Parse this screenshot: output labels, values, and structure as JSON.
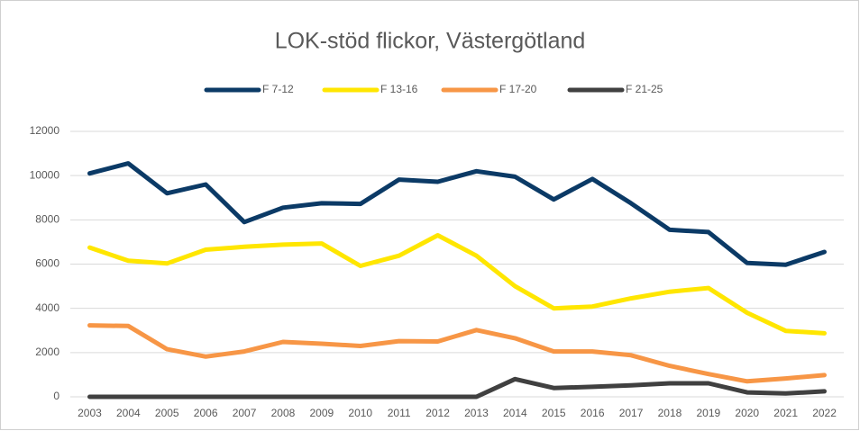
{
  "chart_data": {
    "type": "line",
    "title": "LOK-stöd flickor, Västergötland",
    "categories": [
      "2003",
      "2004",
      "2005",
      "2006",
      "2007",
      "2008",
      "2009",
      "2010",
      "2011",
      "2012",
      "2013",
      "2014",
      "2015",
      "2016",
      "2017",
      "2018",
      "2019",
      "2020",
      "2021",
      "2022"
    ],
    "series": [
      {
        "name": "F 7-12",
        "color": "#0b3a66",
        "values": [
          10100,
          10550,
          9200,
          9600,
          7900,
          8550,
          8750,
          8720,
          9820,
          9720,
          10200,
          9950,
          8920,
          9850,
          8750,
          7550,
          7450,
          6050,
          5970,
          6550
        ]
      },
      {
        "name": "F 13-16",
        "color": "#ffe600",
        "values": [
          6750,
          6150,
          6030,
          6650,
          6780,
          6880,
          6930,
          5920,
          6380,
          7300,
          6380,
          5000,
          4000,
          4080,
          4450,
          4750,
          4920,
          3800,
          2980,
          2870
        ]
      },
      {
        "name": "F 17-20",
        "color": "#f79646",
        "values": [
          3230,
          3200,
          2150,
          1820,
          2050,
          2480,
          2400,
          2300,
          2520,
          2500,
          3020,
          2650,
          2050,
          2050,
          1880,
          1400,
          1030,
          700,
          830,
          980
        ]
      },
      {
        "name": "F 21-25",
        "color": "#404040",
        "values": [
          0,
          0,
          0,
          0,
          0,
          0,
          0,
          0,
          0,
          0,
          0,
          800,
          400,
          450,
          520,
          610,
          610,
          200,
          150,
          250
        ]
      }
    ],
    "ylim": [
      0,
      12000
    ],
    "yticks": [
      0,
      2000,
      4000,
      6000,
      8000,
      10000,
      12000
    ],
    "grid": true,
    "legend": "top"
  }
}
